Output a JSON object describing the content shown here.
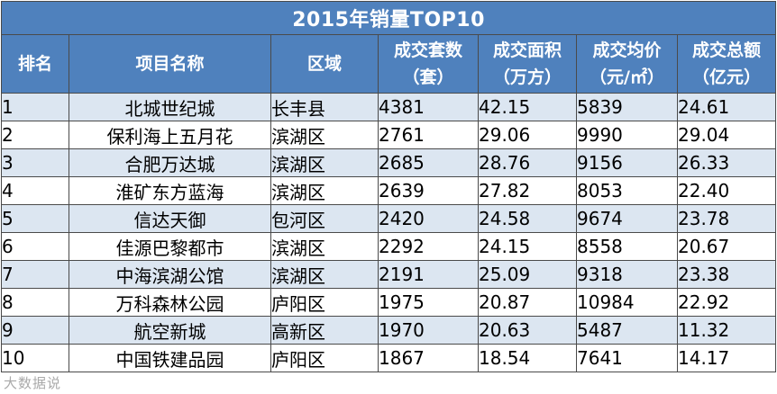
{
  "title": "2015年销量TOP10",
  "headers": [
    {
      "lines": [
        "排名"
      ]
    },
    {
      "lines": [
        "项目名称"
      ]
    },
    {
      "lines": [
        "区域"
      ]
    },
    {
      "lines": [
        "成交套数",
        "（套）"
      ]
    },
    {
      "lines": [
        "成交面积",
        "（万方）"
      ]
    },
    {
      "lines": [
        "成交均价",
        "（元/㎡）"
      ]
    },
    {
      "lines": [
        "成交总额",
        "（亿元）"
      ]
    }
  ],
  "rows": [
    {
      "rank": "1",
      "name": "北城世纪城",
      "region": "长丰县",
      "units": "4381",
      "area": "42.15",
      "price": "5839",
      "total": "24.61"
    },
    {
      "rank": "2",
      "name": "保利海上五月花",
      "region": "滨湖区",
      "units": "2761",
      "area": "29.06",
      "price": "9990",
      "total": "29.04"
    },
    {
      "rank": "3",
      "name": "合肥万达城",
      "region": "滨湖区",
      "units": "2685",
      "area": "28.76",
      "price": "9156",
      "total": "26.33"
    },
    {
      "rank": "4",
      "name": "淮矿东方蓝海",
      "region": "滨湖区",
      "units": "2639",
      "area": "27.82",
      "price": "8053",
      "total": "22.40"
    },
    {
      "rank": "5",
      "name": "信达天御",
      "region": "包河区",
      "units": "2420",
      "area": "24.58",
      "price": "9674",
      "total": "23.78"
    },
    {
      "rank": "6",
      "name": "佳源巴黎都市",
      "region": "滨湖区",
      "units": "2292",
      "area": "24.15",
      "price": "8558",
      "total": "20.67"
    },
    {
      "rank": "7",
      "name": "中海滨湖公馆",
      "region": "滨湖区",
      "units": "2191",
      "area": "25.09",
      "price": "9318",
      "total": "23.38"
    },
    {
      "rank": "8",
      "name": "万科森林公园",
      "region": "庐阳区",
      "units": "1975",
      "area": "20.87",
      "price": "10984",
      "total": "22.92"
    },
    {
      "rank": "9",
      "name": "航空新城",
      "region": "高新区",
      "units": "1970",
      "area": "20.63",
      "price": "5487",
      "total": "11.32"
    },
    {
      "rank": "10",
      "name": "中国铁建品园",
      "region": "庐阳区",
      "units": "1867",
      "area": "18.54",
      "price": "7641",
      "total": "14.17"
    }
  ],
  "watermark": "大数据说",
  "colors": {
    "header_bg": "#4f81bd",
    "band_bg": "#dce6f1",
    "plain_bg": "#ffffff"
  }
}
